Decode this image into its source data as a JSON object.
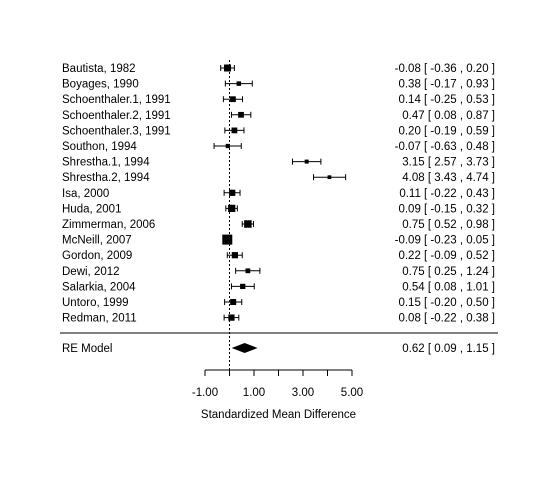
{
  "chart_data": {
    "type": "forest",
    "xlabel": "Standardized Mean Difference",
    "xlim": [
      -1.0,
      5.0
    ],
    "xticks": [
      -1.0,
      1.0,
      3.0,
      5.0
    ],
    "xtick_labels": [
      "-1.00",
      "1.00",
      "3.00",
      "5.00"
    ],
    "reference_line": 0,
    "studies": [
      {
        "label": "Bautista, 1982",
        "estimate": -0.08,
        "lower": -0.36,
        "upper": 0.2,
        "ci_text": "-0.08 [ -0.36 , 0.20 ]",
        "weight": 1.0
      },
      {
        "label": "Boyages, 1990",
        "estimate": 0.38,
        "lower": -0.17,
        "upper": 0.93,
        "ci_text": "0.38 [ -0.17 , 0.93 ]",
        "weight": 0.5
      },
      {
        "label": "Schoenthaler.1, 1991",
        "estimate": 0.14,
        "lower": -0.25,
        "upper": 0.53,
        "ci_text": "0.14 [ -0.25 , 0.53 ]",
        "weight": 0.75
      },
      {
        "label": "Schoenthaler.2, 1991",
        "estimate": 0.47,
        "lower": 0.08,
        "upper": 0.87,
        "ci_text": "0.47 [ 0.08 , 0.87 ]",
        "weight": 0.75
      },
      {
        "label": "Schoenthaler.3, 1991",
        "estimate": 0.2,
        "lower": -0.19,
        "upper": 0.59,
        "ci_text": "0.20 [ -0.19 , 0.59 ]",
        "weight": 0.75
      },
      {
        "label": "Southon, 1994",
        "estimate": -0.07,
        "lower": -0.63,
        "upper": 0.48,
        "ci_text": "-0.07 [ -0.63 , 0.48 ]",
        "weight": 0.45
      },
      {
        "label": "Shrestha.1, 1994",
        "estimate": 3.15,
        "lower": 2.57,
        "upper": 3.73,
        "ci_text": "3.15 [ 2.57 , 3.73 ]",
        "weight": 0.4
      },
      {
        "label": "Shrestha.2, 1994",
        "estimate": 4.08,
        "lower": 3.43,
        "upper": 4.74,
        "ci_text": "4.08 [ 3.43 , 4.74 ]",
        "weight": 0.35
      },
      {
        "label": "Isa, 2000",
        "estimate": 0.11,
        "lower": -0.22,
        "upper": 0.43,
        "ci_text": "0.11 [ -0.22 , 0.43 ]",
        "weight": 0.85
      },
      {
        "label": "Huda, 2001",
        "estimate": 0.09,
        "lower": -0.15,
        "upper": 0.32,
        "ci_text": "0.09 [ -0.15 , 0.32 ]",
        "weight": 1.05
      },
      {
        "label": "Zimmerman, 2006",
        "estimate": 0.75,
        "lower": 0.52,
        "upper": 0.98,
        "ci_text": "0.75 [ 0.52 , 0.98 ]",
        "weight": 1.1
      },
      {
        "label": "McNeill, 2007",
        "estimate": -0.09,
        "lower": -0.23,
        "upper": 0.05,
        "ci_text": "-0.09 [ -0.23 , 0.05 ]",
        "weight": 1.6
      },
      {
        "label": "Gordon, 2009",
        "estimate": 0.22,
        "lower": -0.09,
        "upper": 0.52,
        "ci_text": "0.22 [ -0.09 , 0.52 ]",
        "weight": 0.85
      },
      {
        "label": "Dewi, 2012",
        "estimate": 0.75,
        "lower": 0.25,
        "upper": 1.24,
        "ci_text": "0.75 [ 0.25 , 1.24 ]",
        "weight": 0.55
      },
      {
        "label": "Salarkia, 2004",
        "estimate": 0.54,
        "lower": 0.08,
        "upper": 1.01,
        "ci_text": "0.54 [ 0.08 , 1.01 ]",
        "weight": 0.65
      },
      {
        "label": "Untoro, 1999",
        "estimate": 0.15,
        "lower": -0.2,
        "upper": 0.5,
        "ci_text": "0.15 [ -0.20 , 0.50 ]",
        "weight": 0.8
      },
      {
        "label": "Redman, 2011",
        "estimate": 0.08,
        "lower": -0.22,
        "upper": 0.38,
        "ci_text": "0.08 [ -0.22 , 0.38 ]",
        "weight": 0.85
      }
    ],
    "summary": {
      "label": "RE Model",
      "estimate": 0.62,
      "lower": 0.09,
      "upper": 1.15,
      "ci_text": "0.62 [ 0.09 , 1.15 ]"
    }
  }
}
